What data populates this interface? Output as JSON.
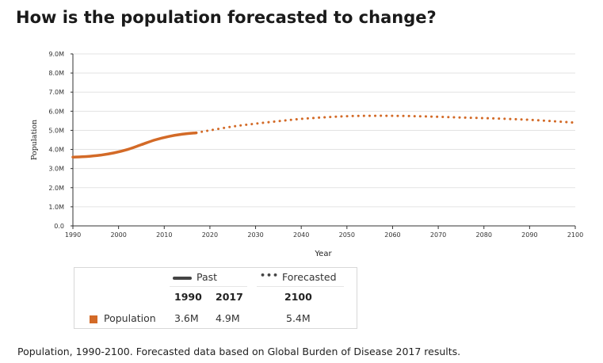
{
  "title": "How is the population forecasted to change?",
  "caption": "Population, 1990-2100. Forecasted data based on Global Burden of Disease 2017 results.",
  "colors": {
    "series": "#d36a27",
    "grid": "#e3e3e3",
    "axis": "#333333",
    "legend_line": "#444444"
  },
  "legend": {
    "past_label": "Past",
    "forecast_label": "Forecasted",
    "col_1990": "1990",
    "col_2017": "2017",
    "col_2100": "2100",
    "row_label": "Population",
    "val_1990": "3.6M",
    "val_2017": "4.9M",
    "val_2100": "5.4M"
  },
  "chart_data": {
    "type": "line",
    "xlabel": "Year",
    "ylabel": "Population",
    "xlim": [
      1990,
      2100
    ],
    "ylim": [
      0,
      9000000
    ],
    "x_ticks": [
      "1990",
      "2000",
      "2010",
      "2020",
      "2030",
      "2040",
      "2050",
      "2060",
      "2070",
      "2080",
      "2090",
      "2100"
    ],
    "y_ticks": [
      "0.0",
      "1.0M",
      "2.0M",
      "3.0M",
      "4.0M",
      "5.0M",
      "6.0M",
      "7.0M",
      "8.0M",
      "9.0M"
    ],
    "grid": true,
    "series": [
      {
        "name": "Past",
        "style": "solid",
        "x": [
          1990,
          1993,
          1996,
          1999,
          2002,
          2005,
          2008,
          2011,
          2014,
          2017
        ],
        "values": [
          3600000,
          3630000,
          3700000,
          3820000,
          4000000,
          4250000,
          4500000,
          4680000,
          4800000,
          4870000
        ]
      },
      {
        "name": "Forecasted",
        "style": "dotted",
        "x": [
          2017,
          2020,
          2025,
          2030,
          2035,
          2040,
          2045,
          2050,
          2055,
          2060,
          2065,
          2070,
          2075,
          2080,
          2085,
          2090,
          2095,
          2100
        ],
        "values": [
          4870000,
          5000000,
          5200000,
          5350000,
          5480000,
          5600000,
          5680000,
          5740000,
          5760000,
          5760000,
          5740000,
          5710000,
          5670000,
          5640000,
          5600000,
          5550000,
          5480000,
          5400000
        ]
      }
    ]
  }
}
